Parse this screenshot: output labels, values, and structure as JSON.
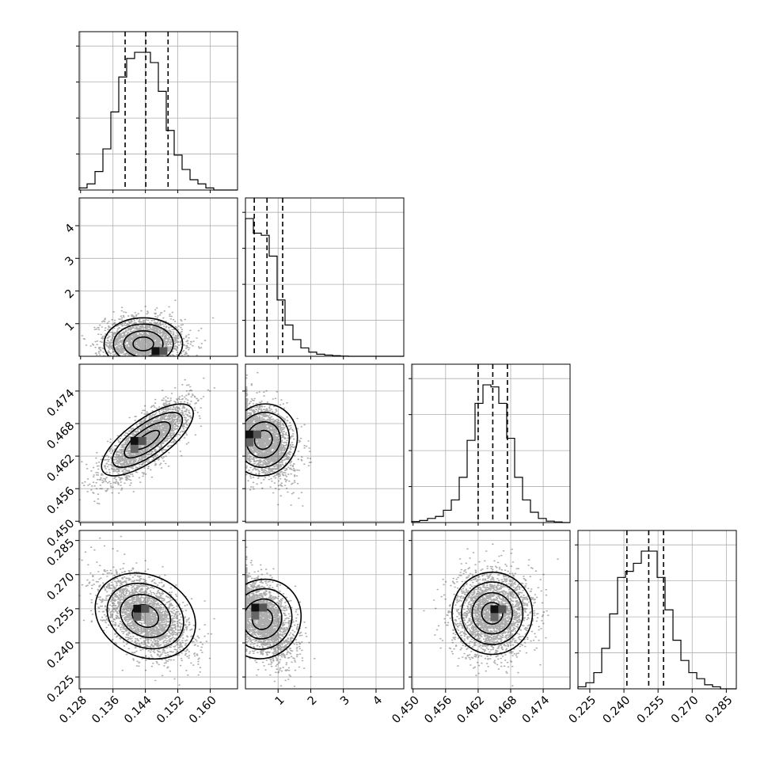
{
  "chart_data": {
    "type": "corner",
    "parameters": [
      {
        "ticks": [
          0.128,
          0.136,
          0.144,
          0.152,
          0.16
        ],
        "tick_labels": [
          "0.128",
          "0.136",
          "0.144",
          "0.152",
          "0.160"
        ],
        "range": [
          0.12766,
          0.16674
        ]
      },
      {
        "ticks": [
          1,
          2,
          3,
          4
        ],
        "tick_labels": [
          "1",
          "2",
          "3",
          "4"
        ],
        "range": [
          0.0,
          4.85
        ]
      },
      {
        "ticks": [
          0.45,
          0.456,
          0.462,
          0.468,
          0.474
        ],
        "tick_labels": [
          "0.450",
          "0.456",
          "0.462",
          "0.468",
          "0.474"
        ],
        "range": [
          0.44975,
          0.47895
        ]
      },
      {
        "ticks": [
          0.225,
          0.24,
          0.255,
          0.27,
          0.285
        ],
        "tick_labels": [
          "0.225",
          "0.240",
          "0.255",
          "0.270",
          "0.285"
        ],
        "range": [
          0.2198,
          0.2894
        ]
      }
    ],
    "histograms": [
      {
        "param": 0,
        "bins": [
          0.12766,
          0.12961,
          0.13157,
          0.13352,
          0.13548,
          0.13743,
          0.13938,
          0.14134,
          0.14329,
          0.14525,
          0.1472,
          0.14915,
          0.15111,
          0.15306,
          0.15502,
          0.15697,
          0.15892,
          0.16088,
          0.16283,
          0.16479,
          0.16674
        ],
        "counts": [
          1,
          3,
          9,
          20,
          38,
          55,
          64,
          67,
          67,
          62,
          48,
          29,
          17,
          10,
          5,
          3,
          1,
          0,
          0,
          0
        ],
        "quantiles": [
          0.139,
          0.1441,
          0.1496
        ]
      },
      {
        "param": 1,
        "bins": [
          0.0,
          0.2425,
          0.485,
          0.7275,
          0.97,
          1.2125,
          1.455,
          1.6975,
          1.94,
          2.1825,
          2.425,
          2.6675,
          2.91,
          3.1525,
          3.395,
          3.6375,
          3.88,
          4.1225,
          4.365,
          4.6075,
          4.85
        ],
        "counts": [
          66,
          59,
          58,
          48,
          27,
          15,
          8,
          4,
          2,
          1,
          0.6,
          0.3,
          0.1,
          0,
          0,
          0,
          0,
          0,
          0,
          0
        ],
        "quantiles": [
          0.27,
          0.66,
          1.14
        ]
      },
      {
        "param": 2,
        "bins": [
          0.44975,
          0.45121,
          0.45267,
          0.45413,
          0.45559,
          0.45705,
          0.45851,
          0.45997,
          0.46143,
          0.46289,
          0.46435,
          0.46581,
          0.46727,
          0.46873,
          0.47019,
          0.47165,
          0.47311,
          0.47457,
          0.47603,
          0.47749,
          0.47895
        ],
        "counts": [
          0.5,
          1,
          2,
          3,
          6,
          11,
          22,
          40,
          58,
          67,
          66,
          58,
          41,
          22,
          11,
          5,
          2,
          0.7,
          0.3,
          0
        ],
        "quantiles": [
          0.462,
          0.4647,
          0.4674
        ]
      },
      {
        "param": 3,
        "bins": [
          0.2198,
          0.22328,
          0.22676,
          0.23024,
          0.23372,
          0.2372,
          0.24068,
          0.24416,
          0.24764,
          0.25112,
          0.2546,
          0.25808,
          0.26156,
          0.26504,
          0.26852,
          0.272,
          0.27548,
          0.27896,
          0.28244,
          0.28592,
          0.2894
        ],
        "counts": [
          1,
          3,
          8,
          20,
          37,
          55,
          58,
          62,
          68,
          68,
          55,
          39,
          24,
          14,
          8,
          5,
          2,
          1,
          0,
          0
        ],
        "quantiles": [
          0.2413,
          0.2509,
          0.2574
        ]
      }
    ],
    "joint": [
      {
        "row": 1,
        "col": 0,
        "center": [
          0.1435,
          0.38
        ],
        "sd": [
          0.0045,
          0.38
        ],
        "corr": -0.05,
        "mode": [
          0.1465,
          0.16
        ]
      },
      {
        "row": 2,
        "col": 0,
        "center": [
          0.1445,
          0.465
        ],
        "sd": [
          0.0048,
          0.0033
        ],
        "corr": 0.78,
        "mode": [
          0.1413,
          0.4648
        ]
      },
      {
        "row": 2,
        "col": 1,
        "center": [
          0.55,
          0.465
        ],
        "sd": [
          0.42,
          0.0032
        ],
        "corr": -0.35,
        "mode": [
          0.12,
          0.466
        ]
      },
      {
        "row": 3,
        "col": 0,
        "center": [
          0.144,
          0.2518
        ],
        "sd": [
          0.005,
          0.0085
        ],
        "corr": -0.5,
        "mode": [
          0.142,
          0.255
        ]
      },
      {
        "row": 3,
        "col": 1,
        "center": [
          0.52,
          0.2505
        ],
        "sd": [
          0.45,
          0.0085
        ],
        "corr": -0.5,
        "mode": [
          0.3,
          0.2555
        ]
      },
      {
        "row": 3,
        "col": 2,
        "center": [
          0.4646,
          0.253
        ],
        "sd": [
          0.0034,
          0.0086
        ],
        "corr": 0.08,
        "mode": [
          0.465,
          0.2548
        ]
      }
    ],
    "grid": true,
    "quantile_style": "dashed",
    "contour_levels": 4
  }
}
